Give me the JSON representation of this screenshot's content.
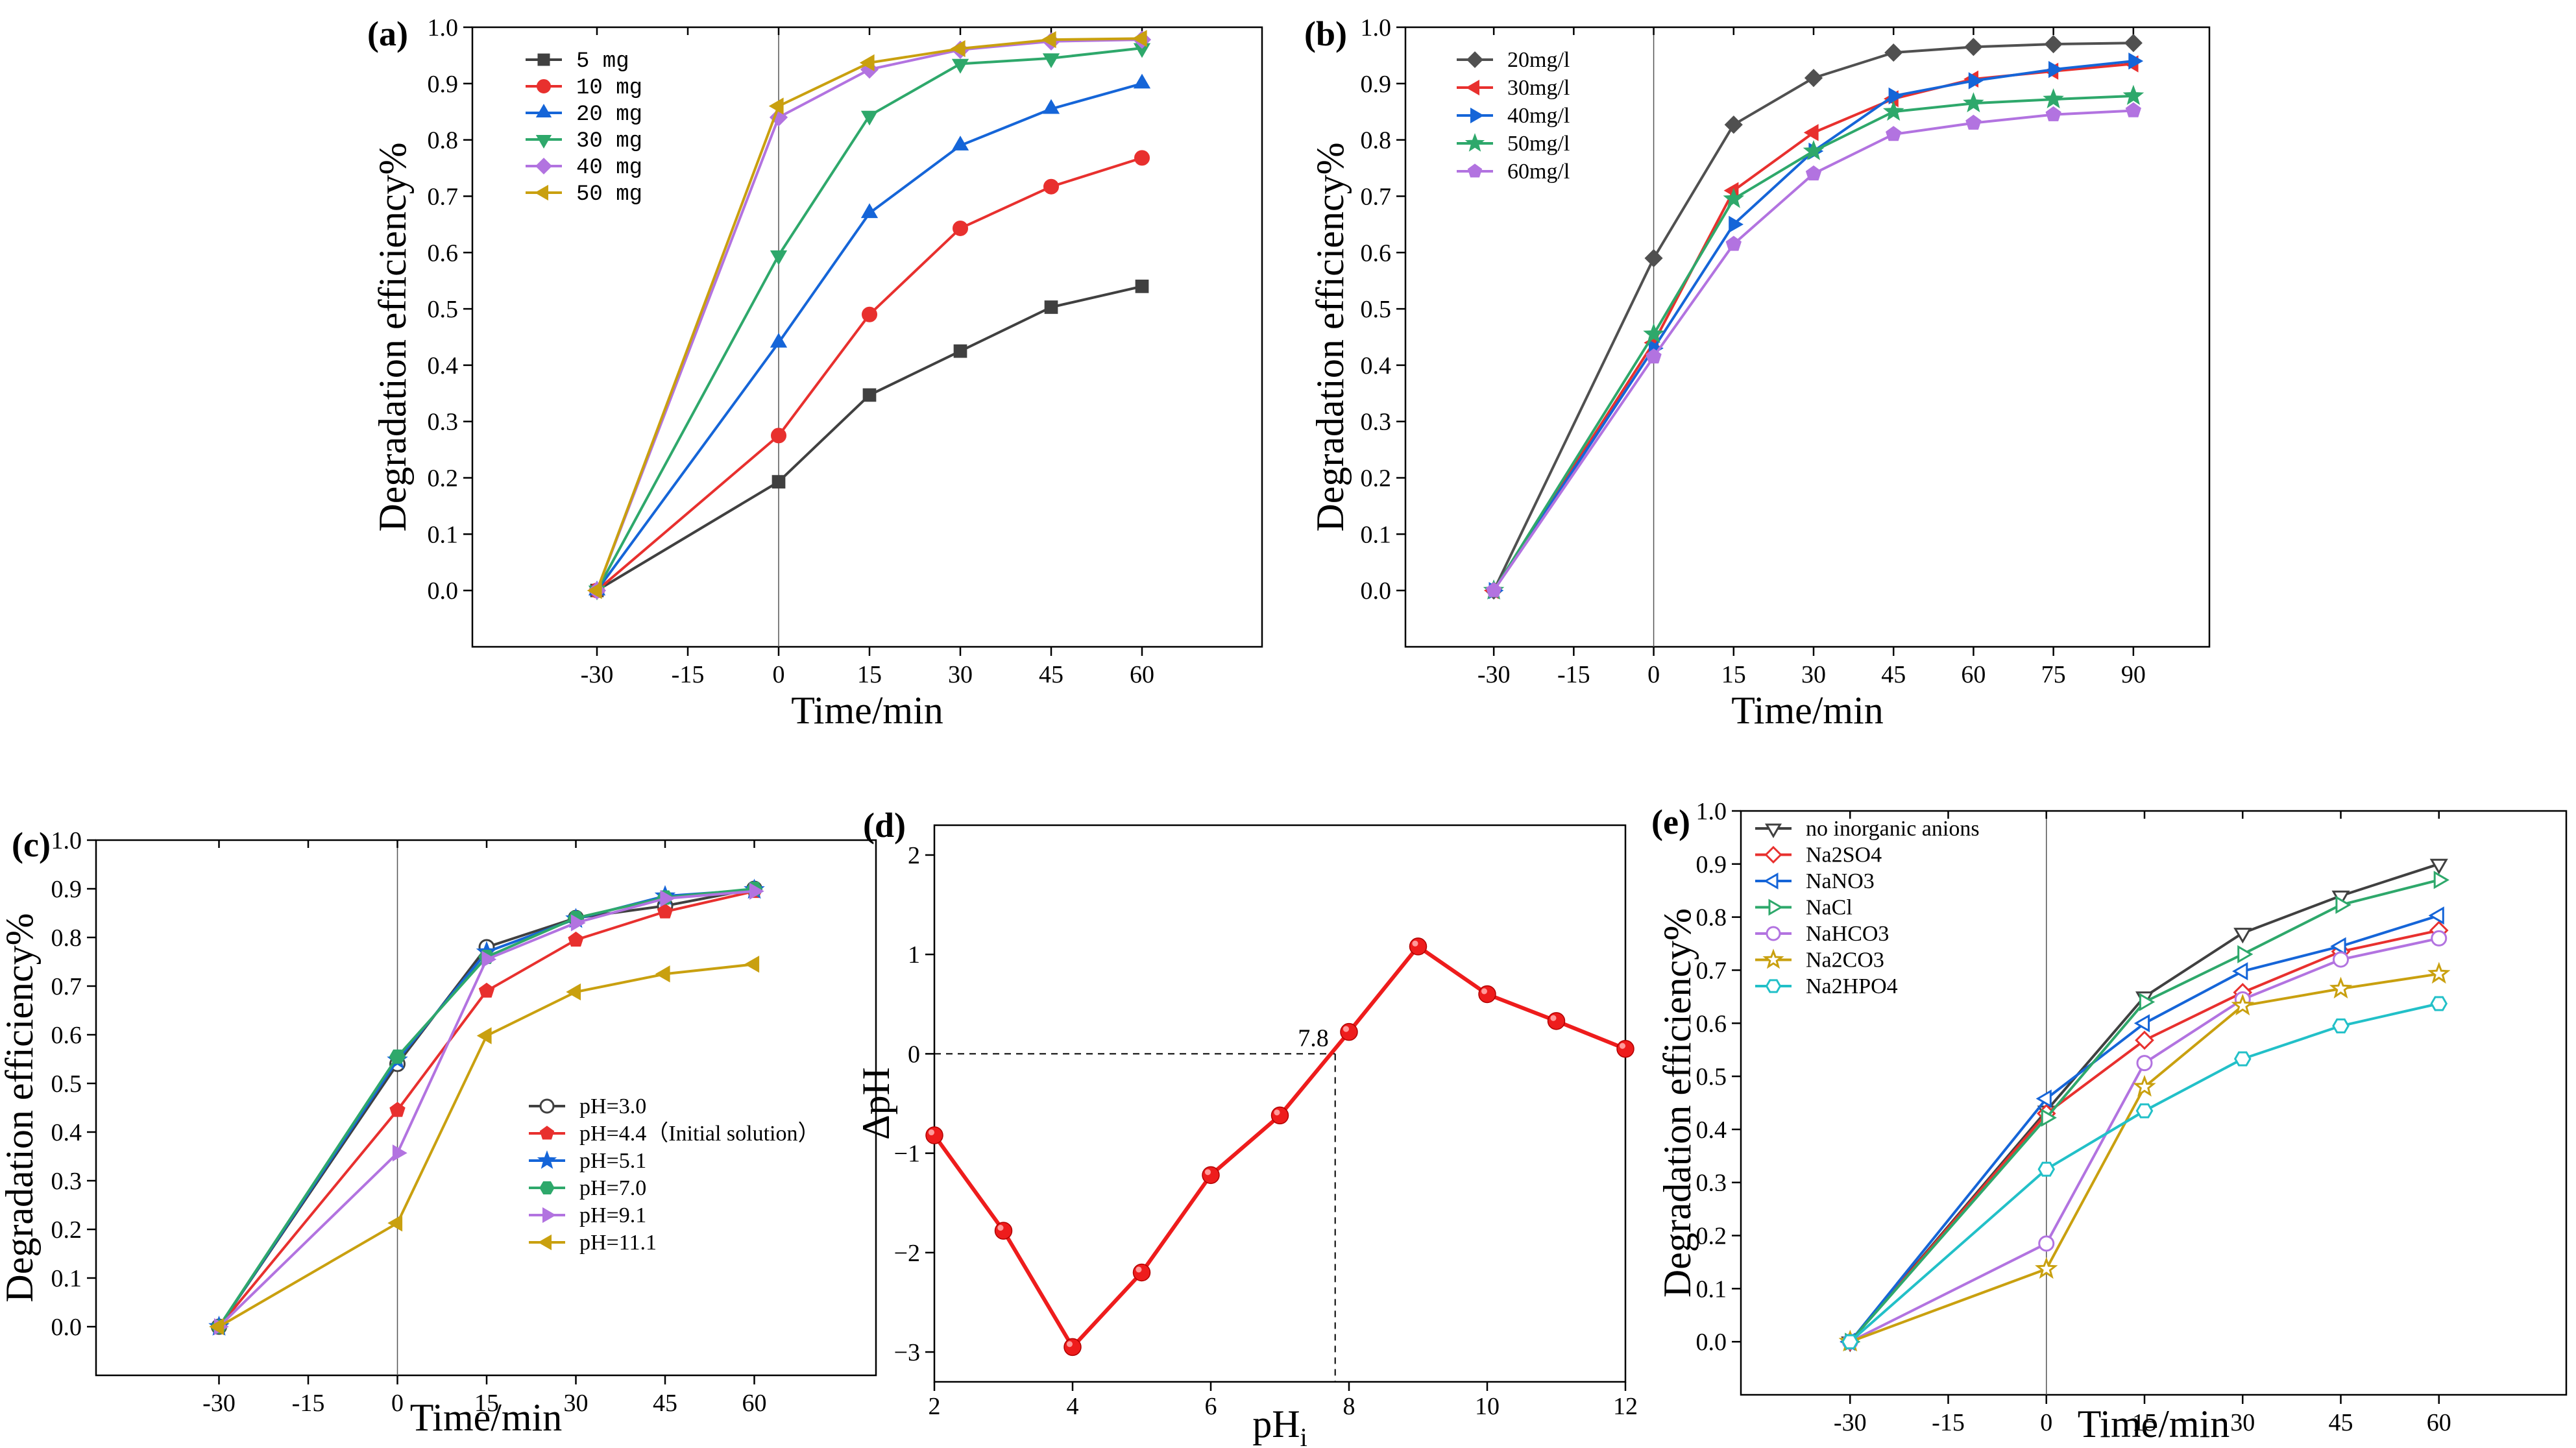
{
  "chart_data": [
    {
      "panel": "(a)",
      "type": "line",
      "xlabel": "Time/min",
      "ylabel": "Degradation efficiency%",
      "x": [
        -30,
        0,
        15,
        30,
        45,
        60
      ],
      "xticks": [
        "-30",
        "-15",
        "0",
        "15",
        "30",
        "45",
        "60"
      ],
      "xlim": [
        -45,
        75
      ],
      "ylim": [
        -0.1,
        1.0
      ],
      "yticks": [
        "0.0",
        "0.1",
        "0.2",
        "0.3",
        "0.4",
        "0.5",
        "0.6",
        "0.7",
        "0.8",
        "0.9",
        "1.0"
      ],
      "vline_x": 0,
      "legend_position": "top-left",
      "series": [
        {
          "name": "5 mg",
          "color": "#404040",
          "marker": "square",
          "values": [
            0,
            0.193,
            0.347,
            0.425,
            0.503,
            0.54
          ]
        },
        {
          "name": "10 mg",
          "color": "#e8302e",
          "marker": "circle",
          "values": [
            0,
            0.275,
            0.49,
            0.643,
            0.717,
            0.768
          ]
        },
        {
          "name": "20 mg",
          "color": "#1565d8",
          "marker": "triangle-up",
          "values": [
            0,
            0.44,
            0.67,
            0.79,
            0.855,
            0.9
          ]
        },
        {
          "name": "30 mg",
          "color": "#2ea86b",
          "marker": "triangle-down",
          "values": [
            0,
            0.595,
            0.843,
            0.935,
            0.945,
            0.963
          ]
        },
        {
          "name": "40 mg",
          "color": "#b273e0",
          "marker": "diamond",
          "values": [
            0,
            0.84,
            0.925,
            0.96,
            0.975,
            0.978
          ]
        },
        {
          "name": "50 mg",
          "color": "#c9a00f",
          "marker": "triangle-left",
          "values": [
            0,
            0.86,
            0.937,
            0.962,
            0.978,
            0.98
          ]
        }
      ]
    },
    {
      "panel": "(b)",
      "type": "line",
      "xlabel": "Time/min",
      "ylabel": "Degradation efficiency%",
      "x": [
        -30,
        0,
        15,
        30,
        45,
        60,
        75,
        90
      ],
      "xticks": [
        "-30",
        "-15",
        "0",
        "15",
        "30",
        "45",
        "60",
        "75",
        "90"
      ],
      "xlim": [
        -40,
        100
      ],
      "ylim": [
        -0.1,
        1.0
      ],
      "yticks": [
        "0.0",
        "0.1",
        "0.2",
        "0.3",
        "0.4",
        "0.5",
        "0.6",
        "0.7",
        "0.8",
        "0.9",
        "1.0"
      ],
      "vline_x": 0,
      "legend_position": "top-left",
      "series": [
        {
          "name": "20mg/l",
          "color": "#505050",
          "marker": "diamond",
          "values": [
            0,
            0.59,
            0.827,
            0.91,
            0.955,
            0.965,
            0.97,
            0.972
          ]
        },
        {
          "name": "30mg/l",
          "color": "#e8302e",
          "marker": "triangle-left",
          "values": [
            0,
            0.44,
            0.71,
            0.813,
            0.873,
            0.908,
            0.922,
            0.935
          ]
        },
        {
          "name": "40mg/l",
          "color": "#1565d8",
          "marker": "triangle-right",
          "values": [
            0,
            0.43,
            0.65,
            0.78,
            0.878,
            0.905,
            0.925,
            0.94
          ]
        },
        {
          "name": "50mg/l",
          "color": "#2ea86b",
          "marker": "star",
          "values": [
            0,
            0.455,
            0.695,
            0.78,
            0.85,
            0.865,
            0.872,
            0.878
          ]
        },
        {
          "name": "60mg/l",
          "color": "#b273e0",
          "marker": "pentagon",
          "values": [
            0,
            0.415,
            0.615,
            0.74,
            0.81,
            0.83,
            0.845,
            0.852
          ]
        }
      ]
    },
    {
      "panel": "(c)",
      "type": "line",
      "xlabel": "Time/min",
      "ylabel": "Degradation efficiency%",
      "x": [
        -30,
        0,
        15,
        30,
        45,
        60
      ],
      "xticks": [
        "-30",
        "-15",
        "0",
        "15",
        "30",
        "45",
        "60"
      ],
      "xlim": [
        -45,
        75
      ],
      "ylim": [
        -0.1,
        1.0
      ],
      "yticks": [
        "0.0",
        "0.1",
        "0.2",
        "0.3",
        "0.4",
        "0.5",
        "0.6",
        "0.7",
        "0.8",
        "0.9",
        "1.0"
      ],
      "vline_x": 0,
      "legend_position": "bottom-right",
      "series": [
        {
          "name": "pH=3.0",
          "color": "#404040",
          "marker": "circle-open",
          "values": [
            0,
            0.54,
            0.78,
            0.84,
            0.865,
            0.9
          ]
        },
        {
          "name": "pH=4.4（Initial solution）",
          "color": "#e8302e",
          "marker": "pentagon",
          "values": [
            0,
            0.445,
            0.69,
            0.795,
            0.853,
            0.895
          ]
        },
        {
          "name": "pH=5.1",
          "color": "#1565d8",
          "marker": "star",
          "values": [
            0,
            0.548,
            0.77,
            0.838,
            0.885,
            0.898
          ]
        },
        {
          "name": "pH=7.0",
          "color": "#2ea86b",
          "marker": "hexagon",
          "values": [
            0,
            0.555,
            0.76,
            0.84,
            0.882,
            0.9
          ]
        },
        {
          "name": "pH=9.1",
          "color": "#b273e0",
          "marker": "triangle-right",
          "values": [
            0,
            0.357,
            0.755,
            0.83,
            0.88,
            0.895
          ]
        },
        {
          "name": "pH=11.1",
          "color": "#c9a00f",
          "marker": "triangle-left",
          "values": [
            0,
            0.213,
            0.598,
            0.688,
            0.725,
            0.745
          ]
        }
      ]
    },
    {
      "panel": "(d)",
      "type": "line",
      "xlabel": "pH",
      "xlabel_sub": "i",
      "ylabel": "ΔpH",
      "x": [
        2,
        3,
        4,
        5,
        6,
        7,
        8,
        9,
        10,
        11,
        12
      ],
      "xticks": [
        "2",
        "4",
        "6",
        "8",
        "10",
        "12"
      ],
      "xlim": [
        2,
        12
      ],
      "ylim": [
        -3.3,
        2.3
      ],
      "yticks": [
        "−3",
        "−2",
        "−1",
        "0",
        "1",
        "2"
      ],
      "annotation": "7.8",
      "annotation_x": 7.8,
      "series": [
        {
          "name": "ΔpH",
          "color": "#ee1c1c",
          "marker": "sphere",
          "values": [
            -0.82,
            -1.78,
            -2.95,
            -2.2,
            -1.22,
            -0.62,
            0.22,
            1.08,
            0.6,
            0.33,
            0.05
          ]
        }
      ]
    },
    {
      "panel": "(e)",
      "type": "line",
      "xlabel": "Time/min",
      "ylabel": "Degradation efficiency%",
      "x": [
        -30,
        0,
        15,
        30,
        45,
        60
      ],
      "xticks": [
        "-30",
        "-15",
        "0",
        "15",
        "30",
        "45",
        "60"
      ],
      "xlim": [
        -45,
        75
      ],
      "ylim": [
        -0.1,
        1.0
      ],
      "yticks": [
        "0.0",
        "0.1",
        "0.2",
        "0.3",
        "0.4",
        "0.5",
        "0.6",
        "0.7",
        "0.8",
        "0.9",
        "1.0"
      ],
      "vline_x": 0,
      "legend_position": "top-left",
      "series": [
        {
          "name": "no inorganic anions",
          "color": "#404040",
          "marker": "triangle-down-open",
          "values": [
            0,
            0.435,
            0.65,
            0.77,
            0.84,
            0.9
          ]
        },
        {
          "name": "Na2SO4",
          "color": "#e8302e",
          "marker": "diamond-open",
          "values": [
            0,
            0.43,
            0.568,
            0.658,
            0.735,
            0.775
          ]
        },
        {
          "name": "NaNO3",
          "color": "#1565d8",
          "marker": "triangle-left-open",
          "values": [
            0,
            0.458,
            0.6,
            0.698,
            0.745,
            0.803
          ]
        },
        {
          "name": "NaCl",
          "color": "#2ea86b",
          "marker": "triangle-right-open",
          "values": [
            0,
            0.422,
            0.64,
            0.73,
            0.823,
            0.87
          ]
        },
        {
          "name": "NaHCO3",
          "color": "#b273e0",
          "marker": "circle-open",
          "values": [
            0,
            0.185,
            0.525,
            0.645,
            0.72,
            0.76
          ]
        },
        {
          "name": "Na2CO3",
          "color": "#c9a00f",
          "marker": "star-open",
          "values": [
            0,
            0.137,
            0.48,
            0.633,
            0.665,
            0.693
          ]
        },
        {
          "name": "Na2HPO4",
          "color": "#22c0c8",
          "marker": "hexagon-open",
          "values": [
            0,
            0.325,
            0.435,
            0.533,
            0.595,
            0.637
          ]
        }
      ]
    }
  ]
}
